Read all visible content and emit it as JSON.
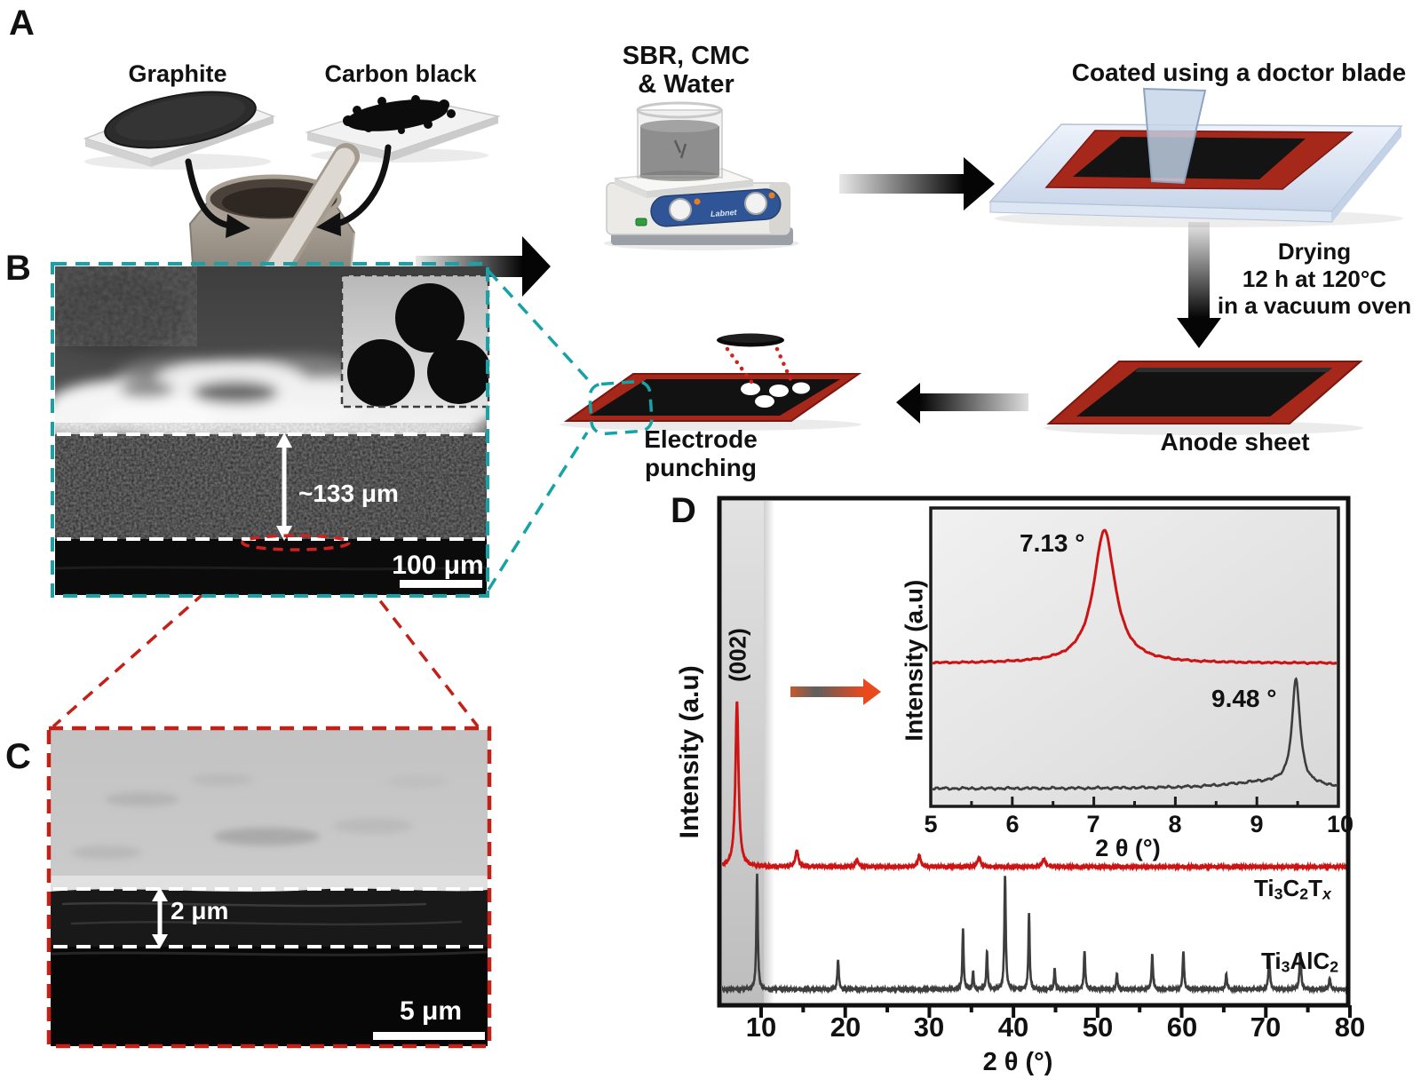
{
  "panel_labels": {
    "a": "A",
    "b": "B",
    "c": "C",
    "d": "D"
  },
  "process": {
    "graphite": "Graphite",
    "carbon_black": "Carbon black",
    "slurry_line1": "SBR, CMC",
    "slurry_line2": "& Water",
    "stirrer_brand": "Labnet",
    "coating": "Coated using a doctor blade",
    "drying_line1": "Drying",
    "drying_line2": "12 h at 120°C",
    "drying_line3": "in a vacuum oven",
    "anode": "Anode sheet",
    "punching_line1": "Electrode",
    "punching_line2": "punching"
  },
  "panel_b": {
    "thickness": "~133 μm",
    "scalebar": "100 μm"
  },
  "panel_c": {
    "thickness": "2 μm",
    "scalebar": "5 μm"
  },
  "xrd": {
    "ylabel": "Intensity (a.u)",
    "xlabel": "2 θ (°)",
    "peak_hkl": "(002)",
    "inset_ylabel": "Intensity (a.u)",
    "inset_xlabel": "2 θ (°)",
    "inset_peak_red": "7.13 °",
    "inset_peak_gray": "9.48 °",
    "series_red": [
      "Ti",
      "3",
      "C",
      "2",
      "T",
      "x"
    ],
    "series_gray": [
      "Ti",
      "3",
      "AlC",
      "2"
    ],
    "x_ticks": [
      "10",
      "20",
      "30",
      "40",
      "50",
      "60",
      "70",
      "80"
    ],
    "inset_x_ticks": [
      "5",
      "6",
      "7",
      "8",
      "9",
      "10"
    ]
  },
  "colors": {
    "teal_dash": "#16a2a6",
    "red_dash": "#c32017",
    "anode_red": "#a5281b",
    "xrd_red": "#cc1414",
    "xrd_gray": "#3d3d3d",
    "arrow_orange": "#e8491d"
  },
  "chart_data": [
    {
      "id": "xrd_main",
      "type": "line",
      "title": "",
      "xlabel": "2 θ (°)",
      "ylabel": "Intensity (a.u)",
      "xlim": [
        4.95,
        80.2
      ],
      "x_ticks": [
        10,
        20,
        30,
        40,
        50,
        60,
        70,
        80
      ],
      "x_minor_ticks": [
        15,
        25,
        35,
        45,
        55,
        65,
        75
      ],
      "grid": false,
      "legend": "none",
      "highlight_band_x": [
        4.95,
        10.3
      ],
      "annotations": [
        {
          "text": "(002)",
          "x": 7.13,
          "series": "Ti3C2Tx"
        },
        {
          "text": "Ti3C2Tx",
          "type": "series-label"
        },
        {
          "text": "Ti3AlC2",
          "type": "series-label"
        }
      ],
      "series": [
        {
          "name": "Ti3C2Tx",
          "color": "#cc1414",
          "peak_shape": "lorentzian",
          "peaks_deg_relint_hwhm": [
            [
              7.13,
              1.0,
              0.22
            ],
            [
              14.25,
              0.1,
              0.2
            ],
            [
              21.4,
              0.04,
              0.2
            ],
            [
              28.8,
              0.07,
              0.2
            ],
            [
              35.9,
              0.055,
              0.22
            ],
            [
              43.6,
              0.045,
              0.22
            ]
          ]
        },
        {
          "name": "Ti3AlC2",
          "color": "#3d3d3d",
          "peak_shape": "lorentzian",
          "peaks_deg_relint_hwhm": [
            [
              9.52,
              1.0,
              0.1
            ],
            [
              19.15,
              0.26,
              0.1
            ],
            [
              34.0,
              0.52,
              0.09
            ],
            [
              35.2,
              0.16,
              0.08
            ],
            [
              36.85,
              0.33,
              0.09
            ],
            [
              39.0,
              0.99,
              0.1
            ],
            [
              41.85,
              0.66,
              0.09
            ],
            [
              44.9,
              0.18,
              0.09
            ],
            [
              48.45,
              0.33,
              0.1
            ],
            [
              52.3,
              0.14,
              0.09
            ],
            [
              56.5,
              0.3,
              0.1
            ],
            [
              60.2,
              0.33,
              0.1
            ],
            [
              65.3,
              0.13,
              0.1
            ],
            [
              70.4,
              0.28,
              0.11
            ],
            [
              74.1,
              0.33,
              0.11
            ],
            [
              77.6,
              0.1,
              0.1
            ]
          ]
        }
      ]
    },
    {
      "id": "xrd_inset",
      "type": "line",
      "title": "",
      "xlabel": "2 θ (°)",
      "ylabel": "Intensity (a.u)",
      "xlim": [
        5.0,
        10.0
      ],
      "x_ticks": [
        5,
        6,
        7,
        8,
        9,
        10
      ],
      "x_minor_ticks": [
        5.5,
        6.5,
        7.5,
        8.5,
        9.5
      ],
      "grid": false,
      "peak_labels": [
        {
          "text": "7.13 °",
          "x": 7.13,
          "series": "Ti3C2Tx"
        },
        {
          "text": "9.48 °",
          "x": 9.48,
          "series": "Ti3AlC2"
        }
      ],
      "series": [
        {
          "name": "Ti3C2Tx",
          "color": "#cc1414",
          "peak_shape": "lorentzian",
          "peaks_deg_relint_hwhm": [
            [
              7.13,
              1.0,
              0.16
            ]
          ]
        },
        {
          "name": "Ti3AlC2",
          "color": "#3d3d3d",
          "peak_shape": "lorentzian",
          "peaks_deg_relint_hwhm": [
            [
              9.48,
              1.0,
              0.06
            ],
            [
              9.1,
              0.06,
              0.6
            ]
          ]
        }
      ]
    }
  ]
}
